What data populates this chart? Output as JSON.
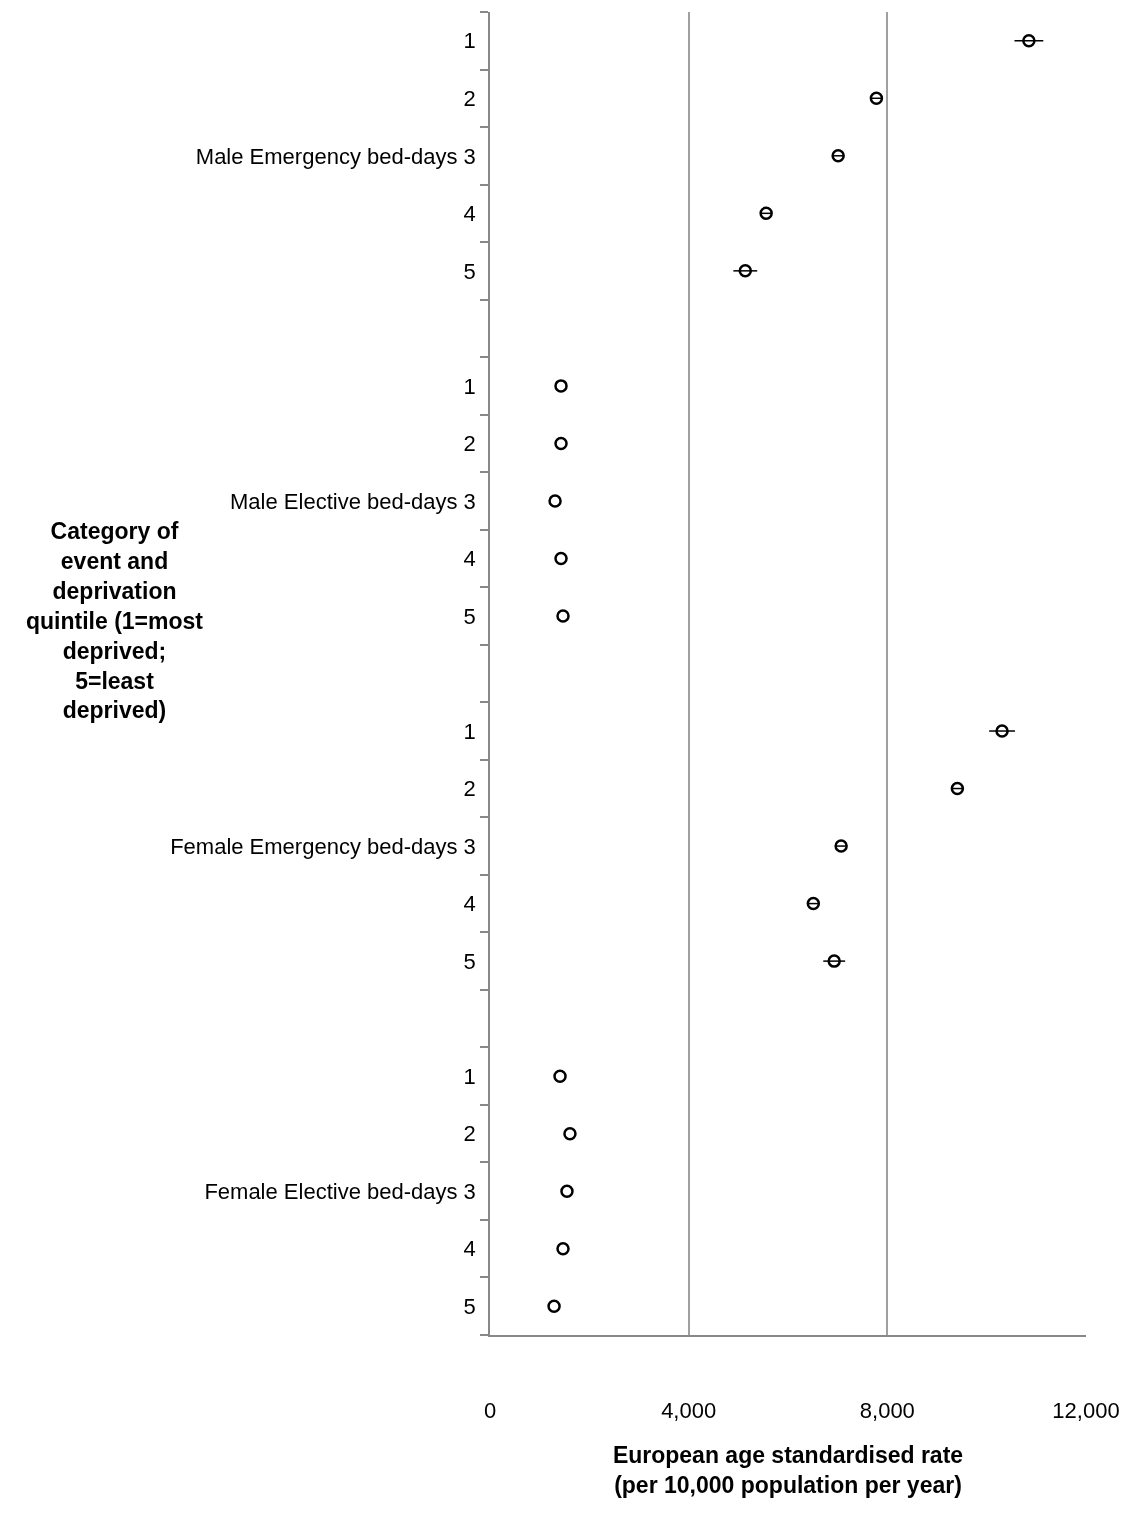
{
  "chart_data": {
    "type": "scatter",
    "orientation": "horizontal",
    "categories": [
      "1",
      "2",
      "Male Emergency bed-days 3",
      "4",
      "5",
      null,
      "1",
      "2",
      "Male Elective bed-days 3",
      "4",
      "5",
      null,
      "1",
      "2",
      "Female Emergency bed-days 3",
      "4",
      "5",
      null,
      "1",
      "2",
      "Female Elective bed-days 3",
      "4",
      "5"
    ],
    "values": [
      10850,
      7780,
      7010,
      5560,
      5140,
      null,
      1430,
      1430,
      1310,
      1430,
      1470,
      null,
      10310,
      9410,
      7070,
      6510,
      6930,
      null,
      1410,
      1610,
      1550,
      1470,
      1290
    ],
    "errors": [
      290,
      120,
      100,
      100,
      240,
      null,
      null,
      null,
      null,
      null,
      null,
      null,
      260,
      100,
      100,
      100,
      220,
      null,
      null,
      null,
      null,
      null,
      null
    ],
    "color": "#000000",
    "marker": "circle",
    "xlim": [
      0,
      12000
    ],
    "xticks": [
      {
        "value": 0,
        "label": "0"
      },
      {
        "value": 4000,
        "label": "4,000"
      },
      {
        "value": 8000,
        "label": "8,000"
      },
      {
        "value": 12000,
        "label": "12,000"
      }
    ],
    "xlabel": "European age standardised rate (per 10,000 population per year)",
    "ylabel": "Category of event and deprivation quintile (1=most deprived; 5=least deprived)",
    "grid": "x",
    "legend": false
  }
}
